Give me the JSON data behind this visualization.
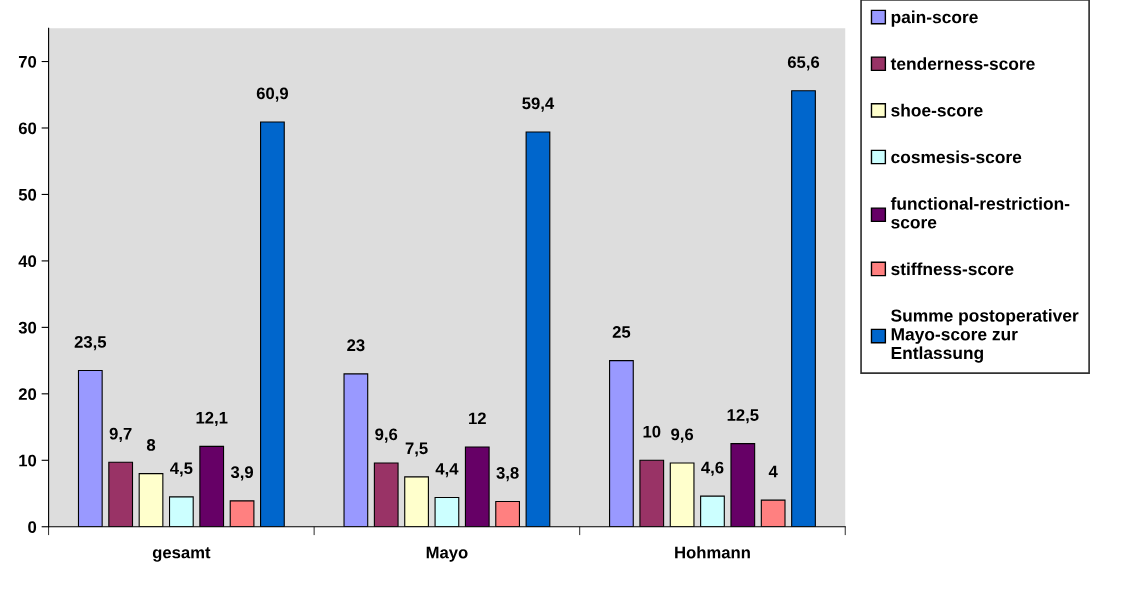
{
  "chart_data": {
    "type": "bar",
    "categories": [
      "gesamt",
      "Mayo",
      "Hohmann"
    ],
    "series": [
      {
        "name": "pain-score",
        "color": "#9999ff",
        "values": [
          23.5,
          23,
          25
        ],
        "value_labels": [
          "23,5",
          "23",
          "25"
        ]
      },
      {
        "name": "tenderness-score",
        "color": "#993366",
        "values": [
          9.7,
          9.6,
          10
        ],
        "value_labels": [
          "9,7",
          "9,6",
          "10"
        ]
      },
      {
        "name": "shoe-score",
        "color": "#ffffcc",
        "values": [
          8,
          7.5,
          9.6
        ],
        "value_labels": [
          "8",
          "7,5",
          "9,6"
        ]
      },
      {
        "name": "cosmesis-score",
        "color": "#ccffff",
        "values": [
          4.5,
          4.4,
          4.6
        ],
        "value_labels": [
          "4,5",
          "4,4",
          "4,6"
        ]
      },
      {
        "name": "functional-restriction-\nscore",
        "color": "#660066",
        "values": [
          12.1,
          12,
          12.5
        ],
        "value_labels": [
          "12,1",
          "12",
          "12,5"
        ]
      },
      {
        "name": "stiffness-score",
        "color": "#ff8080",
        "values": [
          3.9,
          3.8,
          4
        ],
        "value_labels": [
          "3,9",
          "3,8",
          "4"
        ]
      },
      {
        "name": "Summe postoperativer\nMayo-score zur\nEntlassung",
        "color": "#0066cc",
        "values": [
          60.9,
          59.4,
          65.6
        ],
        "value_labels": [
          "60,9",
          "59,4",
          "65,6"
        ]
      }
    ],
    "ylim": [
      0,
      75
    ],
    "yticks": [
      0,
      10,
      20,
      30,
      40,
      50,
      60,
      70
    ],
    "grid": false,
    "legend": "right"
  }
}
